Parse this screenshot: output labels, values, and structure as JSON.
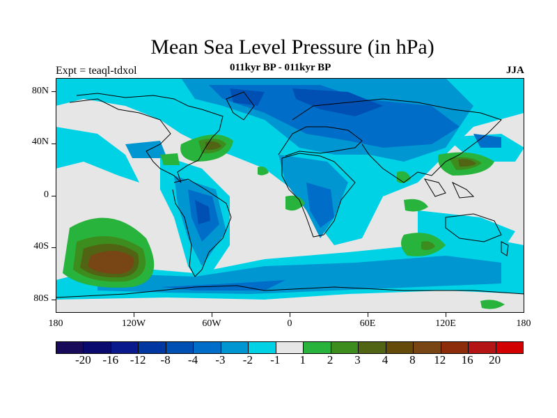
{
  "title": "Mean Sea Level Pressure (in hPa)",
  "subtitle": "011kyr BP - 011kyr BP",
  "experiment": "Expt = teaql-tdxol",
  "season": "JJA",
  "lat_labels": [
    "80N",
    "40N",
    "0",
    "40S",
    "80S"
  ],
  "lon_labels": [
    "180",
    "120W",
    "60W",
    "0",
    "60E",
    "120E",
    "180"
  ],
  "colorbar": {
    "colors": [
      "#1a0a5a",
      "#0a0a6e",
      "#0a1a8c",
      "#0037a0",
      "#0050b4",
      "#006ec8",
      "#0096d2",
      "#00d2e6",
      "#e6e6e6",
      "#28b43c",
      "#3c8c1e",
      "#506414",
      "#644b0a",
      "#784614",
      "#8c2c0a",
      "#b41414",
      "#d20000"
    ],
    "labels": [
      "-20",
      "-16",
      "-12",
      "-8",
      "-4",
      "-3",
      "-2",
      "-1",
      "1",
      "2",
      "3",
      "4",
      "8",
      "12",
      "16",
      "20"
    ]
  },
  "palette": {
    "cyan": "#00d2e6",
    "light_blue": "#0096d2",
    "mid_blue": "#006ec8",
    "deep_blue": "#0050b4",
    "green": "#28b43c",
    "dark_green": "#3c8c1e",
    "olive": "#506414",
    "brown": "#784614",
    "background": "#e6e6e6"
  }
}
